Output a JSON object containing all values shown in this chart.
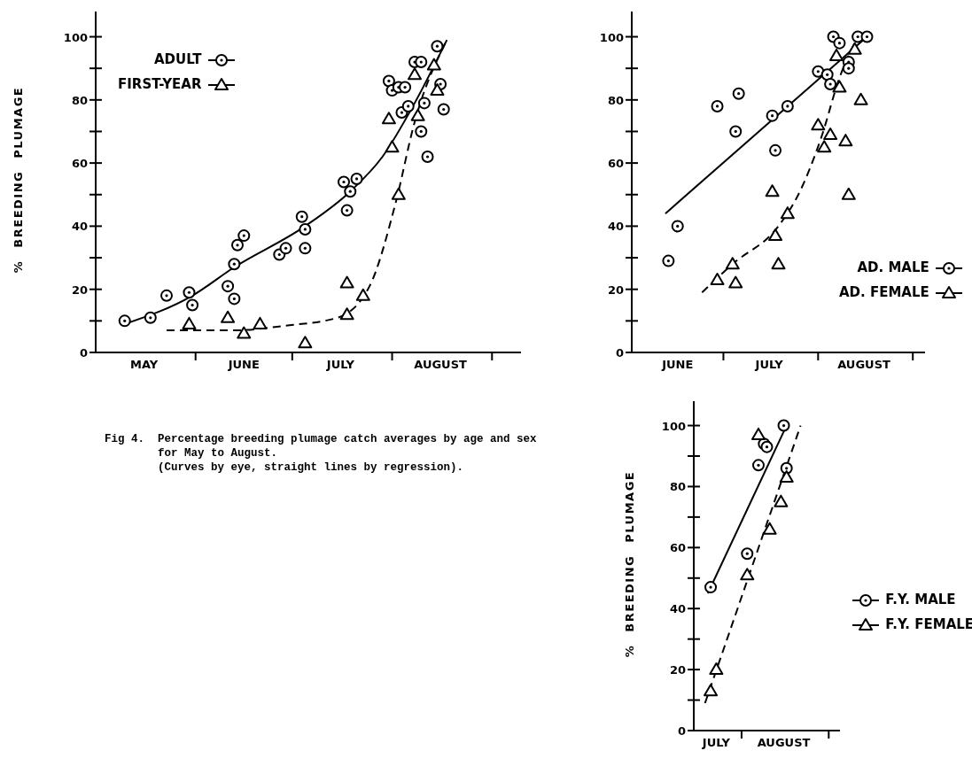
{
  "chart_data": [
    {
      "type": "scatter",
      "ylabel": "% BREEDING PLUMAGE",
      "legend": "top left",
      "xlim": [
        "--05-01",
        "--09-10"
      ],
      "xticks": [
        {
          "value": "--05-16",
          "label": "MAY"
        },
        {
          "value": "--06-01",
          "label": null
        },
        {
          "value": "--06-16",
          "label": "JUNE"
        },
        {
          "value": "--07-01",
          "label": null
        },
        {
          "value": "--07-16",
          "label": "JULY"
        },
        {
          "value": "--08-01",
          "label": null
        },
        {
          "value": "--08-16",
          "label": "AUGUST"
        },
        {
          "value": "--09-01",
          "label": null
        }
      ],
      "ylim": [
        0,
        108
      ],
      "yticks": [
        0,
        {
          "value": 10,
          "label": null
        },
        20,
        {
          "value": 30,
          "label": null
        },
        40,
        {
          "value": 50,
          "label": null
        },
        60,
        {
          "value": 70,
          "label": null
        },
        80,
        {
          "value": 90,
          "label": null
        },
        100
      ],
      "annotations": [
        "Fig 4.  Percentage breeding plumage catch averages by age and sex for May to August.\n(Curves by eye, straight lines by regression)."
      ],
      "series": [
        {
          "name": "ADULT",
          "color": "#000000",
          "marker": "circle",
          "x": [
            "--05-10",
            "--05-18",
            "--05-23",
            "--05-30",
            "--05-31",
            "--06-11",
            "--06-13",
            "--06-13",
            "--06-14",
            "--06-16",
            "--06-27",
            "--06-29",
            "--07-04",
            "--07-05",
            "--07-05",
            "--07-17",
            "--07-19",
            "--07-21",
            "--07-18",
            "--07-31",
            "--08-01",
            "--08-03",
            "--08-05",
            "--08-04",
            "--08-06",
            "--08-08",
            "--08-10",
            "--08-11",
            "--08-10",
            "--08-12",
            "--08-15",
            "--08-16",
            "--08-17"
          ],
          "values": [
            10,
            11,
            18,
            19,
            15,
            21,
            17,
            28,
            34,
            37,
            31,
            33,
            43,
            39,
            33,
            54,
            51,
            55,
            45,
            86,
            83,
            84,
            84,
            76,
            78,
            92,
            92,
            79,
            70,
            62,
            97,
            85,
            77
          ]
        },
        {
          "name": "FIRST-YEAR",
          "color": "#000000",
          "marker": "triangle",
          "x": [
            "--05-30",
            "--06-11",
            "--06-16",
            "--06-21",
            "--07-05",
            "--07-18",
            "--07-18",
            "--07-23",
            "--07-31",
            "--08-01",
            "--08-03",
            "--08-08",
            "--08-09",
            "--08-14",
            "--08-15"
          ],
          "values": [
            9,
            11,
            6,
            9,
            3,
            12,
            22,
            18,
            74,
            65,
            50,
            88,
            75,
            91,
            83
          ]
        },
        {
          "type": "line",
          "color": "#000000",
          "marker": "none",
          "line_style": "solid",
          "x": [
            "--05-10",
            "--05-31",
            "--06-13",
            "--07-05",
            "--07-19",
            "--07-29",
            "--08-08",
            "--08-18"
          ],
          "values": [
            9,
            18,
            27,
            40,
            51,
            62,
            79,
            99
          ]
        },
        {
          "type": "line",
          "color": "#000000",
          "marker": "none",
          "line_style": "dashed",
          "x": [
            "--05-23",
            "--06-13",
            "--06-29",
            "--07-15",
            "--07-25",
            "--08-02",
            "--08-08",
            "--08-18"
          ],
          "values": [
            7,
            7,
            8.5,
            11,
            21,
            47,
            73,
            99
          ]
        }
      ]
    },
    {
      "type": "scatter",
      "legend": "bottom right",
      "xlim": [
        "--06-01",
        "--09-05"
      ],
      "xticks": [
        {
          "value": "--06-16",
          "label": "JUNE"
        },
        {
          "value": "--07-01",
          "label": null
        },
        {
          "value": "--07-16",
          "label": "JULY"
        },
        {
          "value": "--08-01",
          "label": null
        },
        {
          "value": "--08-16",
          "label": "AUGUST"
        },
        {
          "value": "--09-01",
          "label": null
        }
      ],
      "ylim": [
        0,
        108
      ],
      "yticks": [
        0,
        {
          "value": 10,
          "label": null
        },
        20,
        {
          "value": 30,
          "label": null
        },
        40,
        {
          "value": 50,
          "label": null
        },
        60,
        {
          "value": 70,
          "label": null
        },
        80,
        {
          "value": 90,
          "label": null
        },
        100
      ],
      "series": [
        {
          "name": "AD. MALE",
          "color": "#000000",
          "marker": "circle",
          "x": [
            "--06-13",
            "--06-16",
            "--06-29",
            "--07-06",
            "--07-05",
            "--07-17",
            "--07-22",
            "--07-18",
            "--08-01",
            "--08-06",
            "--08-08",
            "--08-04",
            "--08-05",
            "--08-11",
            "--08-11",
            "--08-14",
            "--08-17"
          ],
          "values": [
            29,
            40,
            78,
            82,
            70,
            75,
            78,
            64,
            89,
            100,
            98,
            88,
            85,
            92,
            90,
            100,
            100
          ]
        },
        {
          "name": "AD. FEMALE",
          "color": "#000000",
          "marker": "triangle",
          "x": [
            "--06-29",
            "--07-04",
            "--07-05",
            "--07-17",
            "--07-22",
            "--07-18",
            "--07-19",
            "--08-01",
            "--08-03",
            "--08-05",
            "--08-10",
            "--08-11",
            "--08-08",
            "--08-07",
            "--08-15",
            "--08-13"
          ],
          "values": [
            23,
            28,
            22,
            51,
            44,
            37,
            28,
            72,
            65,
            69,
            67,
            50,
            84,
            94,
            80,
            96
          ]
        },
        {
          "type": "line",
          "color": "#000000",
          "marker": "none",
          "line_style": "solid",
          "x": [
            "--06-12",
            "--08-17"
          ],
          "values": [
            44,
            100
          ]
        },
        {
          "type": "line",
          "color": "#000000",
          "marker": "none",
          "line_style": "dashed",
          "x": [
            "--06-24",
            "--07-04",
            "--07-19",
            "--07-25",
            "--08-02",
            "--08-08",
            "--08-14"
          ],
          "values": [
            19,
            28,
            40,
            49,
            68,
            87,
            100
          ]
        }
      ]
    },
    {
      "type": "scatter",
      "ylabel": "% BREEDING PLUMAGE",
      "legend": "right",
      "xlim": [
        "--07-15",
        "--09-05"
      ],
      "xticks": [
        {
          "value": "--07-23",
          "label": "JULY"
        },
        {
          "value": "--08-01",
          "label": null
        },
        {
          "value": "--08-16",
          "label": "AUGUST"
        },
        {
          "value": "--09-01",
          "label": null
        }
      ],
      "ylim": [
        0,
        108
      ],
      "yticks": [
        0,
        {
          "value": 10,
          "label": null
        },
        20,
        {
          "value": 30,
          "label": null
        },
        40,
        {
          "value": 50,
          "label": null
        },
        60,
        {
          "value": 70,
          "label": null
        },
        80,
        {
          "value": 90,
          "label": null
        },
        100
      ],
      "series": [
        {
          "name": "F.Y. MALE",
          "color": "#000000",
          "marker": "circle",
          "x": [
            "--07-21",
            "--08-03",
            "--08-07",
            "--08-09",
            "--08-10",
            "--08-16",
            "--08-17"
          ],
          "values": [
            47,
            58,
            87,
            94,
            93,
            100,
            86
          ]
        },
        {
          "name": "F.Y. FEMALE",
          "color": "#000000",
          "marker": "triangle",
          "x": [
            "--07-21",
            "--07-23",
            "--08-03",
            "--08-07",
            "--08-11",
            "--08-15",
            "--08-17"
          ],
          "values": [
            13,
            20,
            51,
            97,
            66,
            75,
            83
          ]
        },
        {
          "type": "line",
          "color": "#000000",
          "marker": "none",
          "line_style": "solid",
          "x": [
            "--07-20",
            "--08-17"
          ],
          "values": [
            45,
            100
          ]
        },
        {
          "type": "line",
          "color": "#000000",
          "marker": "none",
          "line_style": "dashed",
          "x": [
            "--07-19",
            "--08-22"
          ],
          "values": [
            9,
            100
          ]
        }
      ]
    }
  ]
}
